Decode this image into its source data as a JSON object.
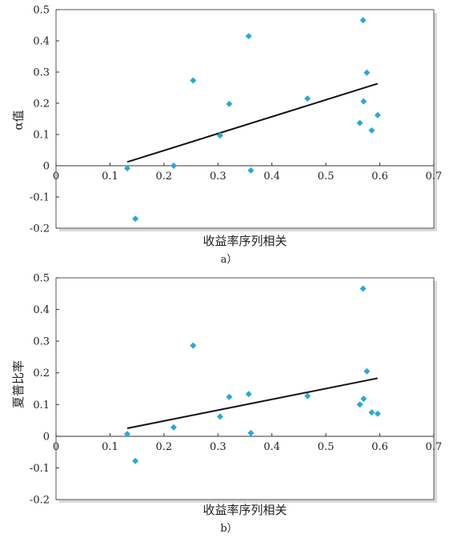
{
  "chart_data": [
    {
      "type": "scatter",
      "panel_label": "a）",
      "xlabel": "收益率序列相关",
      "ylabel": "α值",
      "xlim": [
        0,
        0.7
      ],
      "ylim": [
        -0.2,
        0.5
      ],
      "x_ticks": [
        "0",
        "0.1",
        "0.2",
        "0.3",
        "0.4",
        "0.5",
        "0.6",
        "0.7"
      ],
      "y_ticks": [
        "0.5",
        "0.4",
        "0.3",
        "0.2",
        "0.1",
        "0",
        "-0.1",
        "-0.2"
      ],
      "grid": false,
      "marker_color": "#29a8d8",
      "line_color": "#111111",
      "points": [
        {
          "x": 0.132,
          "y": -0.008
        },
        {
          "x": 0.147,
          "y": -0.17
        },
        {
          "x": 0.218,
          "y": 0.0
        },
        {
          "x": 0.254,
          "y": 0.273
        },
        {
          "x": 0.304,
          "y": 0.097
        },
        {
          "x": 0.321,
          "y": 0.198
        },
        {
          "x": 0.357,
          "y": 0.415
        },
        {
          "x": 0.361,
          "y": -0.015
        },
        {
          "x": 0.466,
          "y": 0.215
        },
        {
          "x": 0.563,
          "y": 0.137
        },
        {
          "x": 0.569,
          "y": 0.466
        },
        {
          "x": 0.57,
          "y": 0.206
        },
        {
          "x": 0.576,
          "y": 0.298
        },
        {
          "x": 0.585,
          "y": 0.113
        },
        {
          "x": 0.596,
          "y": 0.162
        }
      ],
      "trendline": {
        "x": [
          0.132,
          0.596
        ],
        "y": [
          0.012,
          0.263
        ]
      }
    },
    {
      "type": "scatter",
      "panel_label": "b）",
      "xlabel": "收益率序列相关",
      "ylabel": "夏普比率",
      "xlim": [
        0,
        0.7
      ],
      "ylim": [
        -0.2,
        0.5
      ],
      "x_ticks": [
        "0",
        "0.1",
        "0.2",
        "0.3",
        "0.4",
        "0.5",
        "0.6",
        "0.7"
      ],
      "y_ticks": [
        "0.5",
        "0.4",
        "0.3",
        "0.2",
        "0.1",
        "0",
        "-0.1",
        "-0.2"
      ],
      "grid": false,
      "marker_color": "#29a8d8",
      "line_color": "#111111",
      "points": [
        {
          "x": 0.132,
          "y": 0.007
        },
        {
          "x": 0.147,
          "y": -0.078
        },
        {
          "x": 0.218,
          "y": 0.028
        },
        {
          "x": 0.254,
          "y": 0.286
        },
        {
          "x": 0.304,
          "y": 0.062
        },
        {
          "x": 0.321,
          "y": 0.124
        },
        {
          "x": 0.357,
          "y": 0.133
        },
        {
          "x": 0.361,
          "y": 0.01
        },
        {
          "x": 0.466,
          "y": 0.127
        },
        {
          "x": 0.563,
          "y": 0.1
        },
        {
          "x": 0.569,
          "y": 0.466
        },
        {
          "x": 0.57,
          "y": 0.118
        },
        {
          "x": 0.576,
          "y": 0.205
        },
        {
          "x": 0.585,
          "y": 0.075
        },
        {
          "x": 0.596,
          "y": 0.071
        }
      ],
      "trendline": {
        "x": [
          0.132,
          0.596
        ],
        "y": [
          0.025,
          0.183
        ]
      }
    }
  ]
}
